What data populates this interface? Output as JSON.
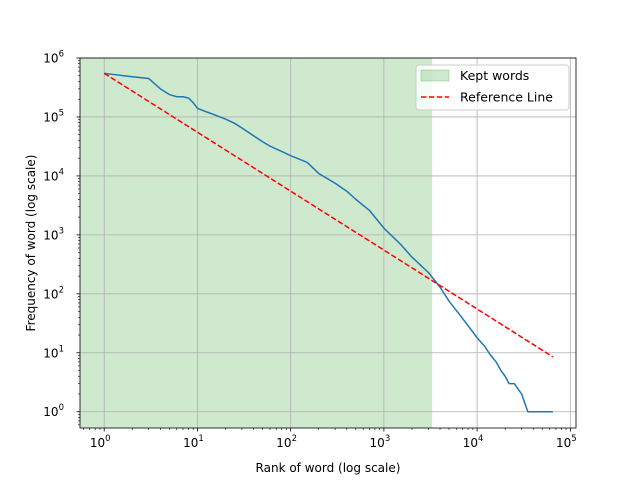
{
  "chart_data": {
    "type": "line",
    "xlabel": "Rank of word (log scale)",
    "ylabel": "Frequency of word (log scale)",
    "x_scale": "log",
    "y_scale": "log",
    "xlim": [
      0.55,
      115000
    ],
    "ylim": [
      0.53,
      1000000
    ],
    "grid": true,
    "legend_position": "top-right",
    "x_ticks": [
      {
        "value": 1,
        "base": "10",
        "exp": "0"
      },
      {
        "value": 10,
        "base": "10",
        "exp": "1"
      },
      {
        "value": 100,
        "base": "10",
        "exp": "2"
      },
      {
        "value": 1000,
        "base": "10",
        "exp": "3"
      },
      {
        "value": 10000,
        "base": "10",
        "exp": "4"
      },
      {
        "value": 100000,
        "base": "10",
        "exp": "5"
      }
    ],
    "y_ticks": [
      {
        "value": 1,
        "base": "10",
        "exp": "0"
      },
      {
        "value": 10,
        "base": "10",
        "exp": "1"
      },
      {
        "value": 100,
        "base": "10",
        "exp": "2"
      },
      {
        "value": 1000,
        "base": "10",
        "exp": "3"
      },
      {
        "value": 10000,
        "base": "10",
        "exp": "4"
      },
      {
        "value": 100000,
        "base": "10",
        "exp": "5"
      },
      {
        "value": 1000000,
        "base": "10",
        "exp": "6"
      }
    ],
    "shaded_region": {
      "name": "Kept words",
      "x_range": [
        0.55,
        3300
      ],
      "color": "#2ca02c",
      "opacity": 0.23
    },
    "series": [
      {
        "name": "",
        "color": "#1f77b4",
        "style": "solid",
        "x": [
          1,
          2,
          3,
          4,
          5,
          6,
          7,
          8,
          9,
          10,
          12,
          15,
          20,
          25,
          30,
          40,
          50,
          60,
          80,
          100,
          150,
          200,
          300,
          400,
          500,
          700,
          1000,
          1500,
          2000,
          3000,
          4000,
          5000,
          7000,
          10000,
          12000,
          14000,
          16000,
          18000,
          20000,
          22000,
          25000,
          30000,
          35000,
          40000,
          50000,
          65000
        ],
        "y": [
          550000,
          480000,
          450000,
          300000,
          240000,
          220000,
          220000,
          210000,
          175000,
          140000,
          125000,
          110000,
          92000,
          78000,
          65000,
          48000,
          38000,
          32000,
          26000,
          22000,
          17000,
          11000,
          7500,
          5500,
          4000,
          2600,
          1300,
          700,
          420,
          230,
          130,
          75,
          38,
          18,
          13,
          9,
          7,
          5,
          4,
          3,
          3,
          2,
          1,
          1,
          1,
          1
        ]
      },
      {
        "name": "Reference Line",
        "color": "#ff0000",
        "style": "dashed",
        "x": [
          1,
          65000
        ],
        "y": [
          550000,
          8.5
        ]
      }
    ],
    "legend": [
      {
        "label": "Kept words",
        "kind": "patch",
        "color": "#2ca02c"
      },
      {
        "label": "Reference Line",
        "kind": "dashed-line",
        "color": "#ff0000"
      }
    ]
  }
}
